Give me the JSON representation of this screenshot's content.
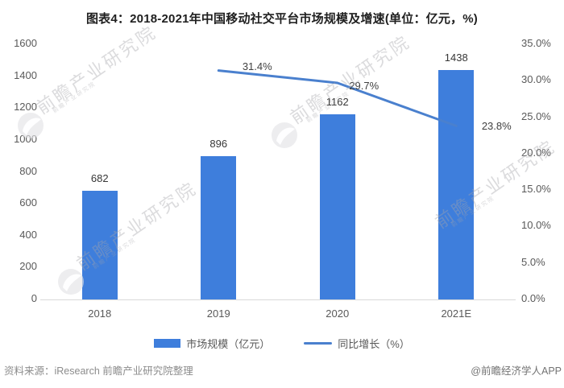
{
  "title": "图表4：2018-2021年中国移动社交平台市场规模及增速(单位：亿元，%)",
  "chart_data": {
    "type": "bar",
    "categories": [
      "2018",
      "2019",
      "2020",
      "2021E"
    ],
    "series": [
      {
        "name": "市场规模（亿元）",
        "type": "bar",
        "axis": "left",
        "color": "#3E7EDC",
        "values": [
          682,
          896,
          1162,
          1438
        ],
        "data_labels": [
          "682",
          "896",
          "1162",
          "1438"
        ]
      },
      {
        "name": "同比增长（%）",
        "type": "line",
        "axis": "right",
        "color": "#4A80CE",
        "values": [
          null,
          31.4,
          29.7,
          23.8
        ],
        "data_labels": [
          "",
          "31.4%",
          "29.7%",
          "23.8%"
        ]
      }
    ],
    "left_axis": {
      "min": 0,
      "max": 1600,
      "step": 200,
      "tick_labels": [
        "0",
        "200",
        "400",
        "600",
        "800",
        "1000",
        "1200",
        "1400",
        "1600"
      ]
    },
    "right_axis": {
      "min": 0,
      "max": 35,
      "step": 5,
      "tick_labels": [
        "0.0%",
        "5.0%",
        "10.0%",
        "15.0%",
        "20.0%",
        "25.0%",
        "30.0%",
        "35.0%"
      ]
    },
    "grid": false,
    "legend_position": "bottom"
  },
  "legend": [
    {
      "label": "市场规模（亿元）",
      "swatch": "rect"
    },
    {
      "label": "同比增长（%）",
      "swatch": "line"
    }
  ],
  "footer": {
    "source": "资料来源：iResearch 前瞻产业研究院整理",
    "brand": "@前瞻经济学人APP"
  },
  "watermark": {
    "text": "前瞻产业研究院",
    "logo": "qianzhan-logo-icon"
  }
}
